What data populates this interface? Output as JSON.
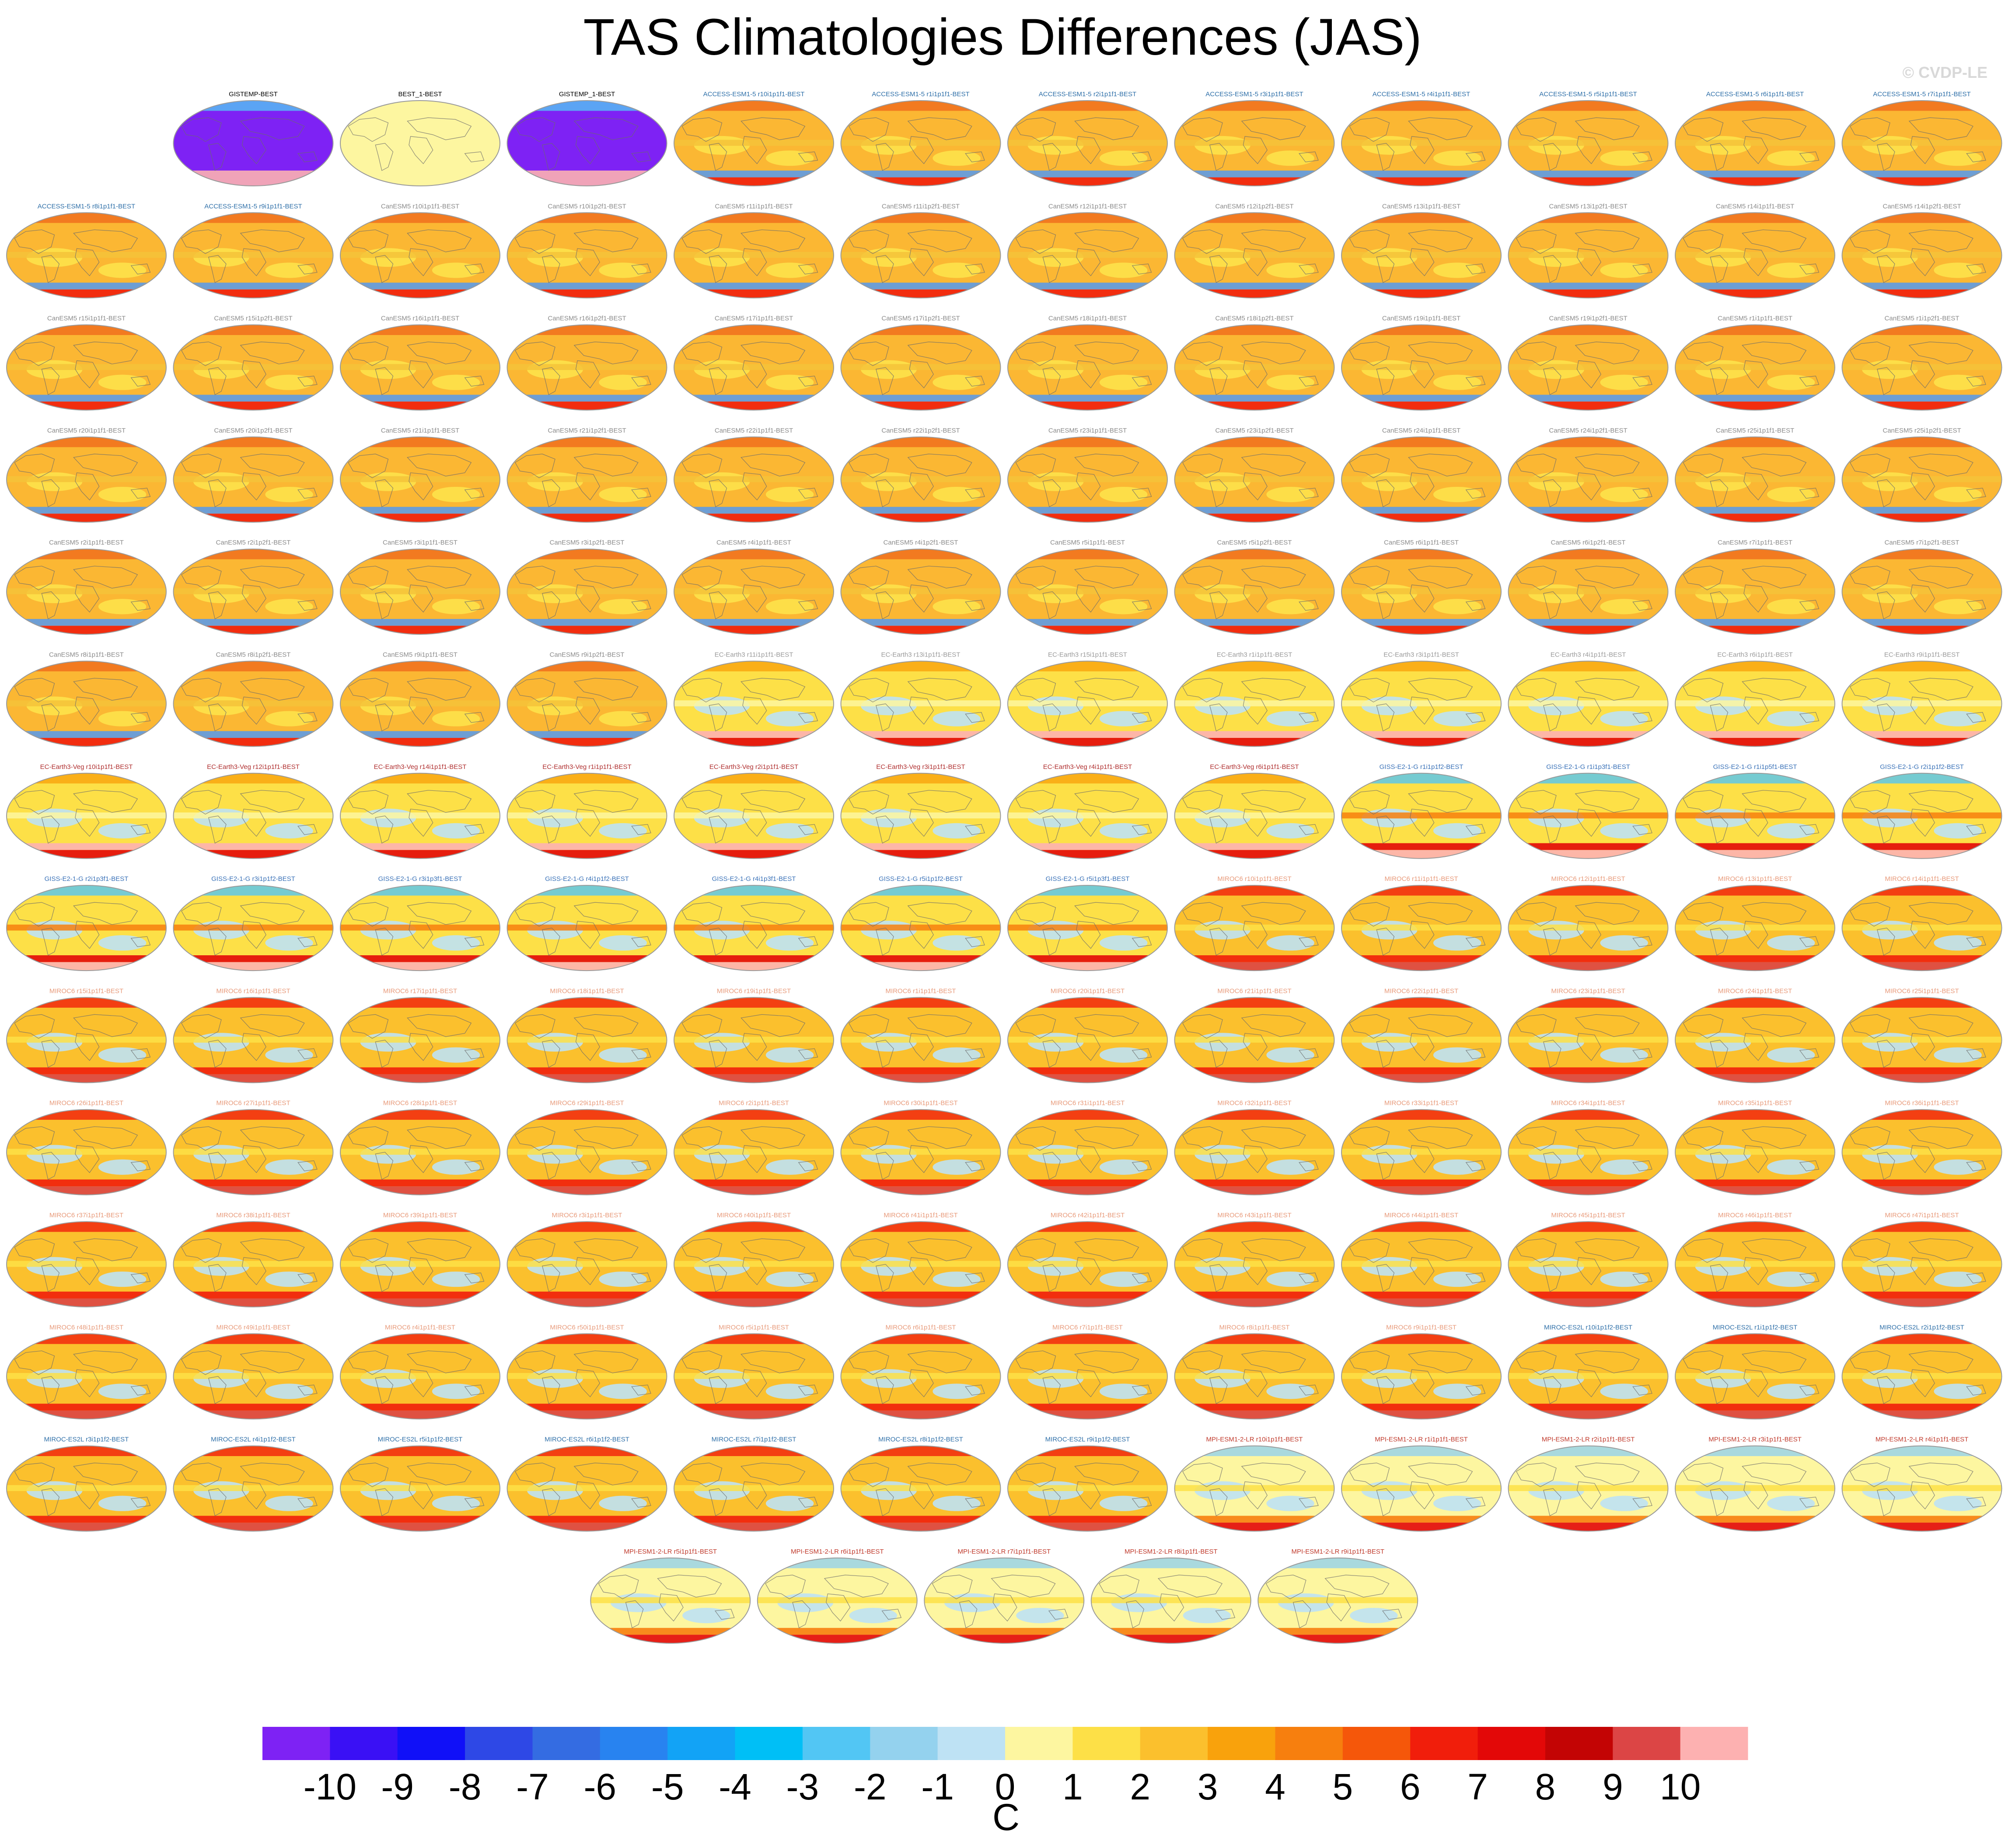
{
  "title": "TAS Climatologies Differences (JAS)",
  "watermark": "© CVDP-LE",
  "colorbar": {
    "unit_label": "C",
    "tick_labels": [
      "-10",
      "-9",
      "-8",
      "-7",
      "-6",
      "-5",
      "-4",
      "-3",
      "-2",
      "-1",
      "0",
      "1",
      "2",
      "3",
      "4",
      "5",
      "6",
      "7",
      "8",
      "9",
      "10"
    ],
    "colors": [
      "#7e22f4",
      "#3a10f5",
      "#1010f8",
      "#2e48e6",
      "#346ce2",
      "#2883f0",
      "#12a3f6",
      "#00bff6",
      "#52c6f4",
      "#94d2ee",
      "#bee2f4",
      "#fdf6a0",
      "#fde047",
      "#fbc02d",
      "#f9a20c",
      "#f77f0e",
      "#f5570a",
      "#f11e0b",
      "#e30808",
      "#c30404",
      "#dc4545",
      "#fdb1b1"
    ]
  },
  "colors": {
    "access": "#2e6fa8",
    "canesm": "#8a8a8a",
    "ecearth": "#9a9a9a",
    "ecearthveg": "#b03030",
    "giss": "#3a72b8",
    "miroc6": "#e89a7a",
    "miroce2l": "#2e6fa8",
    "mpi": "#c0392b",
    "obs": "#000000"
  },
  "chart_data": {
    "type": "heatmap",
    "title": "TAS Climatologies Differences (JAS)",
    "panels": [
      {
        "label": "GISTEMP-BEST",
        "group": "obs",
        "style": "cold"
      },
      {
        "label": "BEST_1-BEST",
        "group": "obs",
        "style": "flat"
      },
      {
        "label": "GISTEMP_1-BEST",
        "group": "obs",
        "style": "cold"
      },
      {
        "label": "ACCESS-ESM1-5 r10i1p1f1-BEST",
        "group": "access",
        "style": "warm"
      },
      {
        "label": "ACCESS-ESM1-5 r1i1p1f1-BEST",
        "group": "access",
        "style": "warm"
      },
      {
        "label": "ACCESS-ESM1-5 r2i1p1f1-BEST",
        "group": "access",
        "style": "warm"
      },
      {
        "label": "ACCESS-ESM1-5 r3i1p1f1-BEST",
        "group": "access",
        "style": "warm"
      },
      {
        "label": "ACCESS-ESM1-5 r4i1p1f1-BEST",
        "group": "access",
        "style": "warm"
      },
      {
        "label": "ACCESS-ESM1-5 r5i1p1f1-BEST",
        "group": "access",
        "style": "warm"
      },
      {
        "label": "ACCESS-ESM1-5 r6i1p1f1-BEST",
        "group": "access",
        "style": "warm"
      },
      {
        "label": "ACCESS-ESM1-5 r7i1p1f1-BEST",
        "group": "access",
        "style": "warm"
      },
      {
        "label": "ACCESS-ESM1-5 r8i1p1f1-BEST",
        "group": "access",
        "style": "warm"
      },
      {
        "label": "ACCESS-ESM1-5 r9i1p1f1-BEST",
        "group": "access",
        "style": "warm"
      },
      {
        "label": "CanESM5 r10i1p1f1-BEST",
        "group": "canesm",
        "style": "warm"
      },
      {
        "label": "CanESM5 r10i1p2f1-BEST",
        "group": "canesm",
        "style": "warm"
      },
      {
        "label": "CanESM5 r11i1p1f1-BEST",
        "group": "canesm",
        "style": "warm"
      },
      {
        "label": "CanESM5 r11i1p2f1-BEST",
        "group": "canesm",
        "style": "warm"
      },
      {
        "label": "CanESM5 r12i1p1f1-BEST",
        "group": "canesm",
        "style": "warm"
      },
      {
        "label": "CanESM5 r12i1p2f1-BEST",
        "group": "canesm",
        "style": "warm"
      },
      {
        "label": "CanESM5 r13i1p1f1-BEST",
        "group": "canesm",
        "style": "warm"
      },
      {
        "label": "CanESM5 r13i1p2f1-BEST",
        "group": "canesm",
        "style": "warm"
      },
      {
        "label": "CanESM5 r14i1p1f1-BEST",
        "group": "canesm",
        "style": "warm"
      },
      {
        "label": "CanESM5 r14i1p2f1-BEST",
        "group": "canesm",
        "style": "warm"
      },
      {
        "label": "CanESM5 r15i1p1f1-BEST",
        "group": "canesm",
        "style": "warm"
      },
      {
        "label": "CanESM5 r15i1p2f1-BEST",
        "group": "canesm",
        "style": "warm"
      },
      {
        "label": "CanESM5 r16i1p1f1-BEST",
        "group": "canesm",
        "style": "warm"
      },
      {
        "label": "CanESM5 r16i1p2f1-BEST",
        "group": "canesm",
        "style": "warm"
      },
      {
        "label": "CanESM5 r17i1p1f1-BEST",
        "group": "canesm",
        "style": "warm"
      },
      {
        "label": "CanESM5 r17i1p2f1-BEST",
        "group": "canesm",
        "style": "warm"
      },
      {
        "label": "CanESM5 r18i1p1f1-BEST",
        "group": "canesm",
        "style": "warm"
      },
      {
        "label": "CanESM5 r18i1p2f1-BEST",
        "group": "canesm",
        "style": "warm"
      },
      {
        "label": "CanESM5 r19i1p1f1-BEST",
        "group": "canesm",
        "style": "warm"
      },
      {
        "label": "CanESM5 r19i1p2f1-BEST",
        "group": "canesm",
        "style": "warm"
      },
      {
        "label": "CanESM5 r1i1p1f1-BEST",
        "group": "canesm",
        "style": "warm"
      },
      {
        "label": "CanESM5 r1i1p2f1-BEST",
        "group": "canesm",
        "style": "warm"
      },
      {
        "label": "CanESM5 r20i1p1f1-BEST",
        "group": "canesm",
        "style": "warm"
      },
      {
        "label": "CanESM5 r20i1p2f1-BEST",
        "group": "canesm",
        "style": "warm"
      },
      {
        "label": "CanESM5 r21i1p1f1-BEST",
        "group": "canesm",
        "style": "warm"
      },
      {
        "label": "CanESM5 r21i1p2f1-BEST",
        "group": "canesm",
        "style": "warm"
      },
      {
        "label": "CanESM5 r22i1p1f1-BEST",
        "group": "canesm",
        "style": "warm"
      },
      {
        "label": "CanESM5 r22i1p2f1-BEST",
        "group": "canesm",
        "style": "warm"
      },
      {
        "label": "CanESM5 r23i1p1f1-BEST",
        "group": "canesm",
        "style": "warm"
      },
      {
        "label": "CanESM5 r23i1p2f1-BEST",
        "group": "canesm",
        "style": "warm"
      },
      {
        "label": "CanESM5 r24i1p1f1-BEST",
        "group": "canesm",
        "style": "warm"
      },
      {
        "label": "CanESM5 r24i1p2f1-BEST",
        "group": "canesm",
        "style": "warm"
      },
      {
        "label": "CanESM5 r25i1p1f1-BEST",
        "group": "canesm",
        "style": "warm"
      },
      {
        "label": "CanESM5 r25i1p2f1-BEST",
        "group": "canesm",
        "style": "warm"
      },
      {
        "label": "CanESM5 r2i1p1f1-BEST",
        "group": "canesm",
        "style": "warm"
      },
      {
        "label": "CanESM5 r2i1p2f1-BEST",
        "group": "canesm",
        "style": "warm"
      },
      {
        "label": "CanESM5 r3i1p1f1-BEST",
        "group": "canesm",
        "style": "warm"
      },
      {
        "label": "CanESM5 r3i1p2f1-BEST",
        "group": "canesm",
        "style": "warm"
      },
      {
        "label": "CanESM5 r4i1p1f1-BEST",
        "group": "canesm",
        "style": "warm"
      },
      {
        "label": "CanESM5 r4i1p2f1-BEST",
        "group": "canesm",
        "style": "warm"
      },
      {
        "label": "CanESM5 r5i1p1f1-BEST",
        "group": "canesm",
        "style": "warm"
      },
      {
        "label": "CanESM5 r5i1p2f1-BEST",
        "group": "canesm",
        "style": "warm"
      },
      {
        "label": "CanESM5 r6i1p1f1-BEST",
        "group": "canesm",
        "style": "warm"
      },
      {
        "label": "CanESM5 r6i1p2f1-BEST",
        "group": "canesm",
        "style": "warm"
      },
      {
        "label": "CanESM5 r7i1p1f1-BEST",
        "group": "canesm",
        "style": "warm"
      },
      {
        "label": "CanESM5 r7i1p2f1-BEST",
        "group": "canesm",
        "style": "warm"
      },
      {
        "label": "CanESM5 r8i1p1f1-BEST",
        "group": "canesm",
        "style": "warm"
      },
      {
        "label": "CanESM5 r8i1p2f1-BEST",
        "group": "canesm",
        "style": "warm"
      },
      {
        "label": "CanESM5 r9i1p1f1-BEST",
        "group": "canesm",
        "style": "warm"
      },
      {
        "label": "CanESM5 r9i1p2f1-BEST",
        "group": "canesm",
        "style": "warm"
      },
      {
        "label": "EC-Earth3 r11i1p1f1-BEST",
        "group": "ecearth",
        "style": "cool"
      },
      {
        "label": "EC-Earth3 r13i1p1f1-BEST",
        "group": "ecearth",
        "style": "cool"
      },
      {
        "label": "EC-Earth3 r15i1p1f1-BEST",
        "group": "ecearth",
        "style": "cool"
      },
      {
        "label": "EC-Earth3 r1i1p1f1-BEST",
        "group": "ecearth",
        "style": "cool"
      },
      {
        "label": "EC-Earth3 r3i1p1f1-BEST",
        "group": "ecearth",
        "style": "cool"
      },
      {
        "label": "EC-Earth3 r4i1p1f1-BEST",
        "group": "ecearth",
        "style": "cool"
      },
      {
        "label": "EC-Earth3 r6i1p1f1-BEST",
        "group": "ecearth",
        "style": "cool"
      },
      {
        "label": "EC-Earth3 r9i1p1f1-BEST",
        "group": "ecearth",
        "style": "cool"
      },
      {
        "label": "EC-Earth3-Veg r10i1p1f1-BEST",
        "group": "ecearthveg",
        "style": "cool"
      },
      {
        "label": "EC-Earth3-Veg r12i1p1f1-BEST",
        "group": "ecearthveg",
        "style": "cool"
      },
      {
        "label": "EC-Earth3-Veg r14i1p1f1-BEST",
        "group": "ecearthveg",
        "style": "cool"
      },
      {
        "label": "EC-Earth3-Veg r1i1p1f1-BEST",
        "group": "ecearthveg",
        "style": "cool"
      },
      {
        "label": "EC-Earth3-Veg r2i1p1f1-BEST",
        "group": "ecearthveg",
        "style": "cool"
      },
      {
        "label": "EC-Earth3-Veg r3i1p1f1-BEST",
        "group": "ecearthveg",
        "style": "cool"
      },
      {
        "label": "EC-Earth3-Veg r4i1p1f1-BEST",
        "group": "ecearthveg",
        "style": "cool"
      },
      {
        "label": "EC-Earth3-Veg r6i1p1f1-BEST",
        "group": "ecearthveg",
        "style": "cool"
      },
      {
        "label": "GISS-E2-1-G r1i1p1f2-BEST",
        "group": "giss",
        "style": "giss"
      },
      {
        "label": "GISS-E2-1-G r1i1p3f1-BEST",
        "group": "giss",
        "style": "giss"
      },
      {
        "label": "GISS-E2-1-G r1i1p5f1-BEST",
        "group": "giss",
        "style": "giss"
      },
      {
        "label": "GISS-E2-1-G r2i1p1f2-BEST",
        "group": "giss",
        "style": "giss"
      },
      {
        "label": "GISS-E2-1-G r2i1p3f1-BEST",
        "group": "giss",
        "style": "giss"
      },
      {
        "label": "GISS-E2-1-G r3i1p1f2-BEST",
        "group": "giss",
        "style": "giss"
      },
      {
        "label": "GISS-E2-1-G r3i1p3f1-BEST",
        "group": "giss",
        "style": "giss"
      },
      {
        "label": "GISS-E2-1-G r4i1p1f2-BEST",
        "group": "giss",
        "style": "giss"
      },
      {
        "label": "GISS-E2-1-G r4i1p3f1-BEST",
        "group": "giss",
        "style": "giss"
      },
      {
        "label": "GISS-E2-1-G r5i1p1f2-BEST",
        "group": "giss",
        "style": "giss"
      },
      {
        "label": "GISS-E2-1-G r5i1p3f1-BEST",
        "group": "giss",
        "style": "giss"
      },
      {
        "label": "MIROC6 r10i1p1f1-BEST",
        "group": "miroc6",
        "style": "miroc"
      },
      {
        "label": "MIROC6 r11i1p1f1-BEST",
        "group": "miroc6",
        "style": "miroc"
      },
      {
        "label": "MIROC6 r12i1p1f1-BEST",
        "group": "miroc6",
        "style": "miroc"
      },
      {
        "label": "MIROC6 r13i1p1f1-BEST",
        "group": "miroc6",
        "style": "miroc"
      },
      {
        "label": "MIROC6 r14i1p1f1-BEST",
        "group": "miroc6",
        "style": "miroc"
      },
      {
        "label": "MIROC6 r15i1p1f1-BEST",
        "group": "miroc6",
        "style": "miroc"
      },
      {
        "label": "MIROC6 r16i1p1f1-BEST",
        "group": "miroc6",
        "style": "miroc"
      },
      {
        "label": "MIROC6 r17i1p1f1-BEST",
        "group": "miroc6",
        "style": "miroc"
      },
      {
        "label": "MIROC6 r18i1p1f1-BEST",
        "group": "miroc6",
        "style": "miroc"
      },
      {
        "label": "MIROC6 r19i1p1f1-BEST",
        "group": "miroc6",
        "style": "miroc"
      },
      {
        "label": "MIROC6 r1i1p1f1-BEST",
        "group": "miroc6",
        "style": "miroc"
      },
      {
        "label": "MIROC6 r20i1p1f1-BEST",
        "group": "miroc6",
        "style": "miroc"
      },
      {
        "label": "MIROC6 r21i1p1f1-BEST",
        "group": "miroc6",
        "style": "miroc"
      },
      {
        "label": "MIROC6 r22i1p1f1-BEST",
        "group": "miroc6",
        "style": "miroc"
      },
      {
        "label": "MIROC6 r23i1p1f1-BEST",
        "group": "miroc6",
        "style": "miroc"
      },
      {
        "label": "MIROC6 r24i1p1f1-BEST",
        "group": "miroc6",
        "style": "miroc"
      },
      {
        "label": "MIROC6 r25i1p1f1-BEST",
        "group": "miroc6",
        "style": "miroc"
      },
      {
        "label": "MIROC6 r26i1p1f1-BEST",
        "group": "miroc6",
        "style": "miroc"
      },
      {
        "label": "MIROC6 r27i1p1f1-BEST",
        "group": "miroc6",
        "style": "miroc"
      },
      {
        "label": "MIROC6 r28i1p1f1-BEST",
        "group": "miroc6",
        "style": "miroc"
      },
      {
        "label": "MIROC6 r29i1p1f1-BEST",
        "group": "miroc6",
        "style": "miroc"
      },
      {
        "label": "MIROC6 r2i1p1f1-BEST",
        "group": "miroc6",
        "style": "miroc"
      },
      {
        "label": "MIROC6 r30i1p1f1-BEST",
        "group": "miroc6",
        "style": "miroc"
      },
      {
        "label": "MIROC6 r31i1p1f1-BEST",
        "group": "miroc6",
        "style": "miroc"
      },
      {
        "label": "MIROC6 r32i1p1f1-BEST",
        "group": "miroc6",
        "style": "miroc"
      },
      {
        "label": "MIROC6 r33i1p1f1-BEST",
        "group": "miroc6",
        "style": "miroc"
      },
      {
        "label": "MIROC6 r34i1p1f1-BEST",
        "group": "miroc6",
        "style": "miroc"
      },
      {
        "label": "MIROC6 r35i1p1f1-BEST",
        "group": "miroc6",
        "style": "miroc"
      },
      {
        "label": "MIROC6 r36i1p1f1-BEST",
        "group": "miroc6",
        "style": "miroc"
      },
      {
        "label": "MIROC6 r37i1p1f1-BEST",
        "group": "miroc6",
        "style": "miroc"
      },
      {
        "label": "MIROC6 r38i1p1f1-BEST",
        "group": "miroc6",
        "style": "miroc"
      },
      {
        "label": "MIROC6 r39i1p1f1-BEST",
        "group": "miroc6",
        "style": "miroc"
      },
      {
        "label": "MIROC6 r3i1p1f1-BEST",
        "group": "miroc6",
        "style": "miroc"
      },
      {
        "label": "MIROC6 r40i1p1f1-BEST",
        "group": "miroc6",
        "style": "miroc"
      },
      {
        "label": "MIROC6 r41i1p1f1-BEST",
        "group": "miroc6",
        "style": "miroc"
      },
      {
        "label": "MIROC6 r42i1p1f1-BEST",
        "group": "miroc6",
        "style": "miroc"
      },
      {
        "label": "MIROC6 r43i1p1f1-BEST",
        "group": "miroc6",
        "style": "miroc"
      },
      {
        "label": "MIROC6 r44i1p1f1-BEST",
        "group": "miroc6",
        "style": "miroc"
      },
      {
        "label": "MIROC6 r45i1p1f1-BEST",
        "group": "miroc6",
        "style": "miroc"
      },
      {
        "label": "MIROC6 r46i1p1f1-BEST",
        "group": "miroc6",
        "style": "miroc"
      },
      {
        "label": "MIROC6 r47i1p1f1-BEST",
        "group": "miroc6",
        "style": "miroc"
      },
      {
        "label": "MIROC6 r48i1p1f1-BEST",
        "group": "miroc6",
        "style": "miroc"
      },
      {
        "label": "MIROC6 r49i1p1f1-BEST",
        "group": "miroc6",
        "style": "miroc"
      },
      {
        "label": "MIROC6 r4i1p1f1-BEST",
        "group": "miroc6",
        "style": "miroc"
      },
      {
        "label": "MIROC6 r50i1p1f1-BEST",
        "group": "miroc6",
        "style": "miroc"
      },
      {
        "label": "MIROC6 r5i1p1f1-BEST",
        "group": "miroc6",
        "style": "miroc"
      },
      {
        "label": "MIROC6 r6i1p1f1-BEST",
        "group": "miroc6",
        "style": "miroc"
      },
      {
        "label": "MIROC6 r7i1p1f1-BEST",
        "group": "miroc6",
        "style": "miroc"
      },
      {
        "label": "MIROC6 r8i1p1f1-BEST",
        "group": "miroc6",
        "style": "miroc"
      },
      {
        "label": "MIROC6 r9i1p1f1-BEST",
        "group": "miroc6",
        "style": "miroc"
      },
      {
        "label": "MIROC-ES2L r10i1p1f2-BEST",
        "group": "miroce2l",
        "style": "miroc"
      },
      {
        "label": "MIROC-ES2L r1i1p1f2-BEST",
        "group": "miroce2l",
        "style": "miroc"
      },
      {
        "label": "MIROC-ES2L r2i1p1f2-BEST",
        "group": "miroce2l",
        "style": "miroc"
      },
      {
        "label": "MIROC-ES2L r3i1p1f2-BEST",
        "group": "miroce2l",
        "style": "miroc"
      },
      {
        "label": "MIROC-ES2L r4i1p1f2-BEST",
        "group": "miroce2l",
        "style": "miroc"
      },
      {
        "label": "MIROC-ES2L r5i1p1f2-BEST",
        "group": "miroce2l",
        "style": "miroc"
      },
      {
        "label": "MIROC-ES2L r6i1p1f2-BEST",
        "group": "miroce2l",
        "style": "miroc"
      },
      {
        "label": "MIROC-ES2L r7i1p1f2-BEST",
        "group": "miroce2l",
        "style": "miroc"
      },
      {
        "label": "MIROC-ES2L r8i1p1f2-BEST",
        "group": "miroce2l",
        "style": "miroc"
      },
      {
        "label": "MIROC-ES2L r9i1p1f2-BEST",
        "group": "miroce2l",
        "style": "miroc"
      },
      {
        "label": "MPI-ESM1-2-LR r10i1p1f1-BEST",
        "group": "mpi",
        "style": "mpi"
      },
      {
        "label": "MPI-ESM1-2-LR r1i1p1f1-BEST",
        "group": "mpi",
        "style": "mpi"
      },
      {
        "label": "MPI-ESM1-2-LR r2i1p1f1-BEST",
        "group": "mpi",
        "style": "mpi"
      },
      {
        "label": "MPI-ESM1-2-LR r3i1p1f1-BEST",
        "group": "mpi",
        "style": "mpi"
      },
      {
        "label": "MPI-ESM1-2-LR r4i1p1f1-BEST",
        "group": "mpi",
        "style": "mpi"
      },
      {
        "label": "MPI-ESM1-2-LR r5i1p1f1-BEST",
        "group": "mpi",
        "style": "mpi"
      },
      {
        "label": "MPI-ESM1-2-LR r6i1p1f1-BEST",
        "group": "mpi",
        "style": "mpi"
      },
      {
        "label": "MPI-ESM1-2-LR r7i1p1f1-BEST",
        "group": "mpi",
        "style": "mpi"
      },
      {
        "label": "MPI-ESM1-2-LR r8i1p1f1-BEST",
        "group": "mpi",
        "style": "mpi"
      },
      {
        "label": "MPI-ESM1-2-LR r9i1p1f1-BEST",
        "group": "mpi",
        "style": "mpi"
      }
    ],
    "colorbar_min": -10,
    "colorbar_max": 10,
    "colorbar_unit": "C"
  }
}
